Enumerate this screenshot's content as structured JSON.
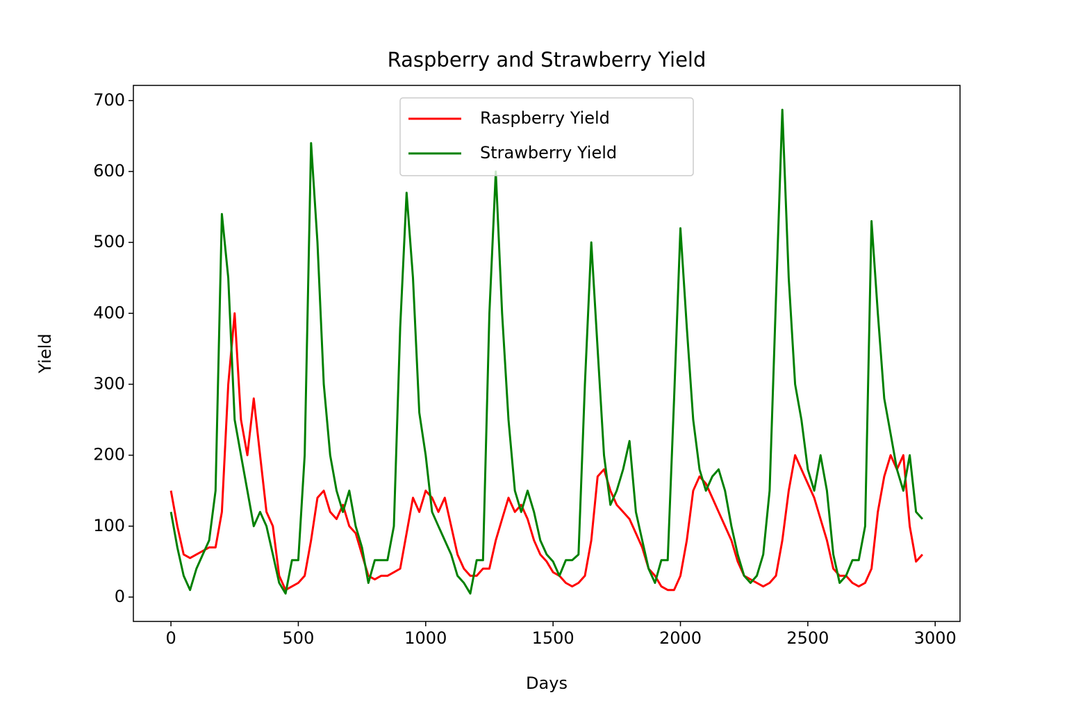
{
  "chart_data": {
    "type": "line",
    "title": "Raspberry and Strawberry Yield",
    "x_label": "Days",
    "y_label": "Yield",
    "x": [
      0,
      25,
      50,
      75,
      100,
      125,
      150,
      175,
      200,
      225,
      250,
      275,
      300,
      325,
      350,
      375,
      400,
      425,
      450,
      475,
      500,
      525,
      550,
      575,
      600,
      625,
      650,
      675,
      700,
      725,
      750,
      775,
      800,
      825,
      850,
      875,
      900,
      925,
      950,
      975,
      1000,
      1025,
      1050,
      1075,
      1100,
      1125,
      1150,
      1175,
      1200,
      1225,
      1250,
      1275,
      1300,
      1325,
      1350,
      1375,
      1400,
      1425,
      1450,
      1475,
      1500,
      1525,
      1550,
      1575,
      1600,
      1625,
      1650,
      1675,
      1700,
      1725,
      1750,
      1775,
      1800,
      1825,
      1850,
      1875,
      1900,
      1925,
      1950,
      1975,
      2000,
      2025,
      2050,
      2075,
      2100,
      2125,
      2150,
      2175,
      2200,
      2225,
      2250,
      2275,
      2300,
      2325,
      2350,
      2375,
      2400,
      2425,
      2450,
      2475,
      2500,
      2525,
      2550,
      2575,
      2600,
      2625,
      2650,
      2675,
      2700,
      2725,
      2750,
      2775,
      2800,
      2825,
      2850,
      2875,
      2900,
      2925,
      2950
    ],
    "series": [
      {
        "name": "Raspberry Yield",
        "color": "#ff0000",
        "values": [
          150,
          100,
          60,
          55,
          60,
          65,
          70,
          70,
          120,
          300,
          400,
          250,
          200,
          280,
          200,
          120,
          100,
          30,
          10,
          15,
          20,
          30,
          80,
          140,
          150,
          120,
          110,
          130,
          100,
          90,
          60,
          30,
          25,
          30,
          30,
          35,
          40,
          90,
          140,
          120,
          150,
          140,
          120,
          140,
          100,
          60,
          40,
          30,
          30,
          40,
          40,
          80,
          110,
          140,
          120,
          130,
          110,
          80,
          60,
          50,
          35,
          30,
          20,
          15,
          20,
          30,
          80,
          170,
          180,
          150,
          130,
          120,
          110,
          90,
          70,
          40,
          30,
          15,
          10,
          10,
          30,
          80,
          150,
          170,
          160,
          140,
          120,
          100,
          80,
          50,
          30,
          25,
          20,
          15,
          20,
          30,
          80,
          150,
          200,
          180,
          160,
          140,
          110,
          80,
          40,
          30,
          30,
          20,
          15,
          20,
          40,
          120,
          170,
          200,
          180,
          200,
          100,
          50,
          60
        ]
      },
      {
        "name": "Strawberry Yield",
        "color": "#008000",
        "values": [
          120,
          70,
          30,
          10,
          40,
          60,
          80,
          150,
          540,
          450,
          250,
          200,
          150,
          100,
          120,
          100,
          60,
          20,
          5,
          52,
          52,
          200,
          640,
          500,
          300,
          200,
          150,
          120,
          150,
          100,
          70,
          20,
          52,
          52,
          52,
          100,
          380,
          570,
          450,
          260,
          200,
          120,
          100,
          80,
          60,
          30,
          20,
          5,
          52,
          52,
          400,
          600,
          400,
          250,
          150,
          120,
          150,
          120,
          80,
          60,
          50,
          30,
          52,
          52,
          60,
          300,
          500,
          350,
          200,
          130,
          150,
          180,
          220,
          120,
          80,
          40,
          20,
          52,
          52,
          280,
          520,
          380,
          250,
          180,
          150,
          170,
          180,
          150,
          100,
          60,
          30,
          20,
          30,
          60,
          150,
          420,
          687,
          450,
          300,
          250,
          180,
          150,
          200,
          150,
          60,
          20,
          30,
          52,
          52,
          100,
          530,
          400,
          280,
          230,
          180,
          150,
          200,
          120,
          110
        ]
      }
    ],
    "xlim": [
      -147.5,
      3097.5
    ],
    "ylim": [
      -34.35,
      721.35
    ],
    "xticks": [
      0,
      500,
      1000,
      1500,
      2000,
      2500,
      3000
    ],
    "yticks": [
      0,
      100,
      200,
      300,
      400,
      500,
      600,
      700
    ],
    "legend": "upper center"
  }
}
